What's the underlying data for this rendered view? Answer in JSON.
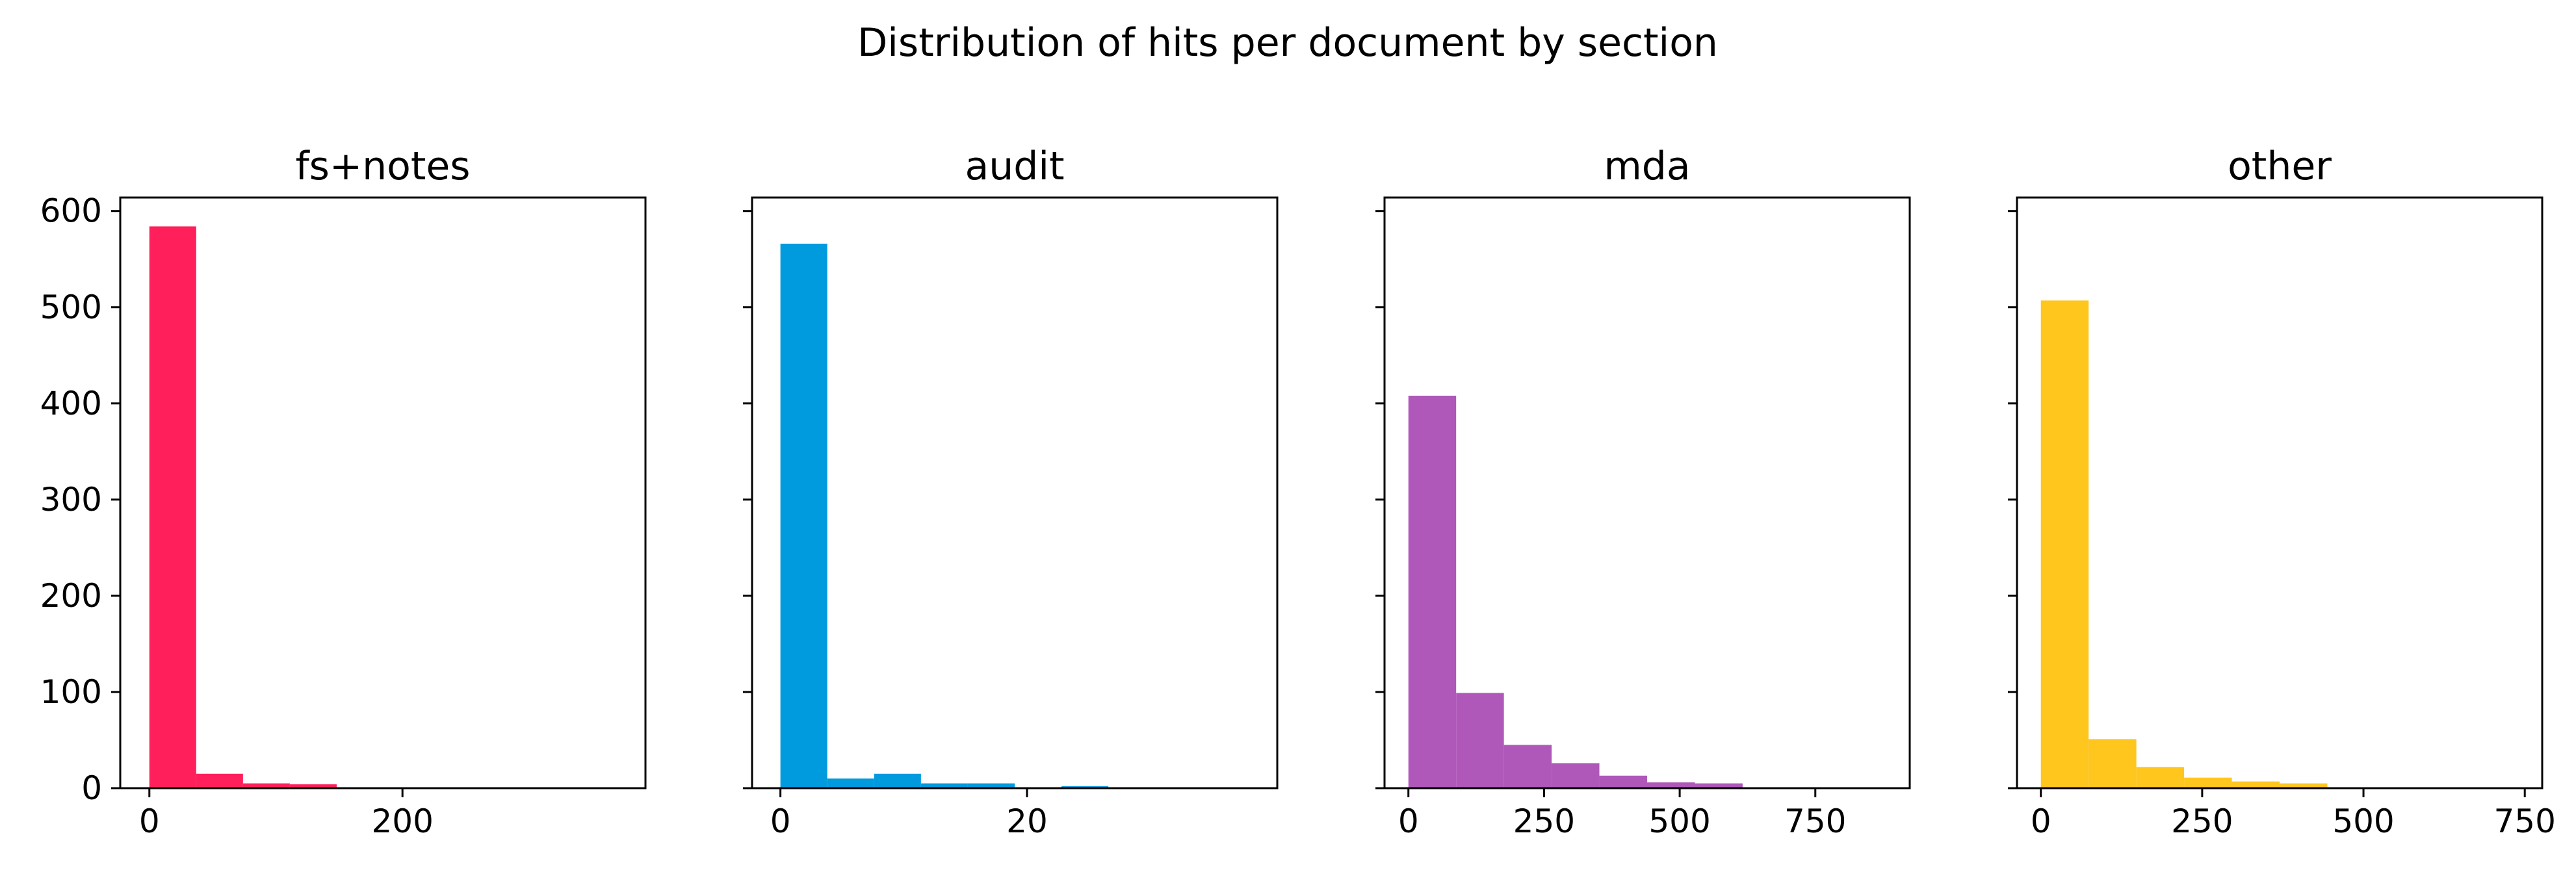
{
  "title": "Distribution of hits per document by section",
  "chart_data": [
    {
      "type": "histogram",
      "title": "fs+notes",
      "color": "#ff1f5b",
      "bin_edges": [
        0,
        37,
        74,
        111,
        148,
        185,
        222,
        259,
        296,
        333,
        370
      ],
      "counts": [
        584,
        15,
        5,
        4,
        1,
        1,
        1,
        0,
        0,
        1
      ],
      "xlim": [
        -23,
        392
      ],
      "ylim": [
        0,
        614
      ],
      "xticks": [
        0,
        200
      ],
      "xtick_labels": [
        "0",
        "200"
      ],
      "yticks": [
        0,
        100,
        200,
        300,
        400,
        500,
        600
      ],
      "ytick_labels": [
        "0",
        "100",
        "200",
        "300",
        "400",
        "500",
        "600"
      ]
    },
    {
      "type": "histogram",
      "title": "audit",
      "color": "#009ade",
      "bin_edges": [
        0,
        3.8,
        7.6,
        11.4,
        15.2,
        19,
        22.8,
        26.6,
        30.4,
        34.2,
        38
      ],
      "counts": [
        566,
        10,
        15,
        5,
        5,
        1,
        2,
        0,
        0,
        1
      ],
      "xlim": [
        -2.3,
        40.3
      ],
      "ylim": [
        0,
        614
      ],
      "xticks": [
        0,
        20
      ],
      "xtick_labels": [
        "0",
        "20"
      ],
      "yticks": [
        0,
        100,
        200,
        300,
        400,
        500,
        600
      ]
    },
    {
      "type": "histogram",
      "title": "mda",
      "color": "#af58ba",
      "bin_edges": [
        0,
        88,
        176,
        264,
        352,
        440,
        528,
        616,
        704,
        792,
        880
      ],
      "counts": [
        408,
        99,
        45,
        26,
        13,
        6,
        5,
        1,
        1,
        1
      ],
      "xlim": [
        -44,
        924
      ],
      "ylim": [
        0,
        614
      ],
      "xticks": [
        0,
        250,
        500,
        750
      ],
      "xtick_labels": [
        "0",
        "250",
        "500",
        "750"
      ],
      "yticks": [
        0,
        100,
        200,
        300,
        400,
        500,
        600
      ]
    },
    {
      "type": "histogram",
      "title": "other",
      "color": "#ffc61e",
      "bin_edges": [
        0,
        74,
        148,
        222,
        296,
        370,
        444,
        518,
        592,
        666,
        740
      ],
      "counts": [
        507,
        51,
        22,
        11,
        7,
        5,
        1,
        1,
        0,
        1
      ],
      "xlim": [
        -37,
        777
      ],
      "ylim": [
        0,
        614
      ],
      "xticks": [
        0,
        250,
        500,
        750
      ],
      "xtick_labels": [
        "0",
        "250",
        "500",
        "750"
      ],
      "yticks": [
        0,
        100,
        200,
        300,
        400,
        500,
        600
      ]
    }
  ]
}
